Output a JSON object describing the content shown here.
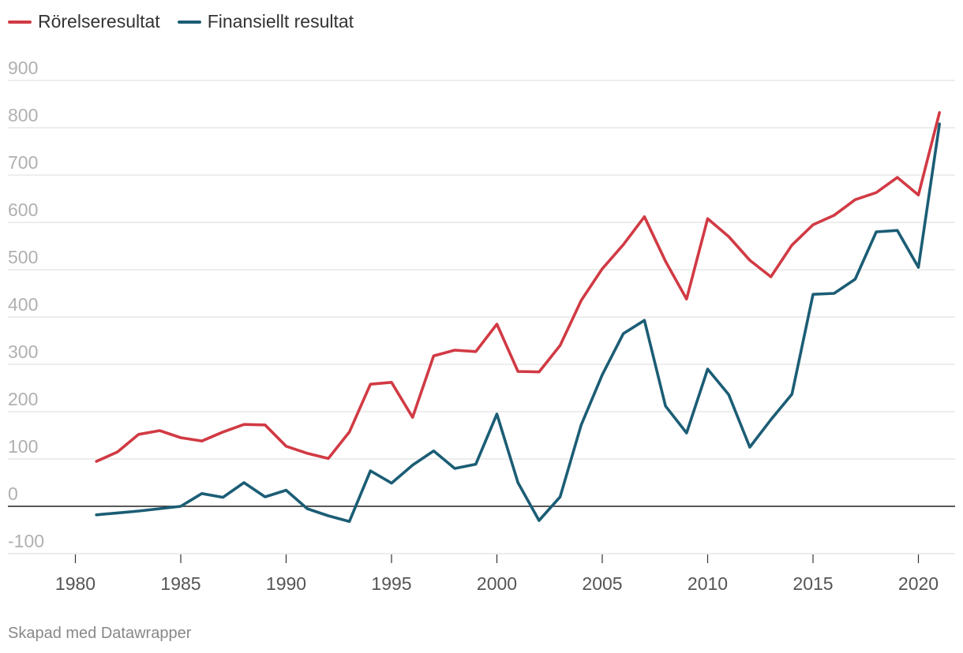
{
  "legend": {
    "items": [
      {
        "label": "Rörelseresultat",
        "color": "#d13a44"
      },
      {
        "label": "Finansiellt resultat",
        "color": "#1b5d75"
      }
    ]
  },
  "footer": {
    "credit": "Skapad med Datawrapper"
  },
  "chart_data": {
    "type": "line",
    "title": "",
    "xlabel": "",
    "ylabel": "",
    "ylim": [
      -100,
      900
    ],
    "xlim": [
      1980,
      2021
    ],
    "yticks": [
      "900",
      "800",
      "700",
      "600",
      "500",
      "400",
      "300",
      "200",
      "100",
      "0",
      "-100"
    ],
    "ytick_values": [
      900,
      800,
      700,
      600,
      500,
      400,
      300,
      200,
      100,
      0,
      -100
    ],
    "xticks": [
      "1980",
      "1985",
      "1990",
      "1995",
      "2000",
      "2005",
      "2010",
      "2015",
      "2020"
    ],
    "xtick_values": [
      1980,
      1985,
      1990,
      1995,
      2000,
      2005,
      2010,
      2015,
      2020
    ],
    "grid": true,
    "x": [
      1981,
      1982,
      1983,
      1984,
      1985,
      1986,
      1987,
      1988,
      1989,
      1990,
      1991,
      1992,
      1993,
      1994,
      1995,
      1996,
      1997,
      1998,
      1999,
      2000,
      2001,
      2002,
      2003,
      2004,
      2005,
      2006,
      2007,
      2008,
      2009,
      2010,
      2011,
      2012,
      2013,
      2014,
      2015,
      2016,
      2017,
      2018,
      2019,
      2020,
      2021
    ],
    "series": [
      {
        "name": "Rörelseresultat",
        "color": "#d13a44",
        "values": [
          95,
          115,
          152,
          160,
          145,
          138,
          157,
          173,
          172,
          127,
          112,
          101,
          157,
          258,
          262,
          188,
          318,
          330,
          327,
          385,
          285,
          284,
          340,
          435,
          502,
          553,
          612,
          518,
          438,
          608,
          570,
          520,
          485,
          552,
          595,
          615,
          648,
          663,
          695,
          658,
          832
        ]
      },
      {
        "name": "Finansiellt resultat",
        "color": "#1b5d75",
        "values": [
          -18,
          -14,
          -10,
          -5,
          0,
          27,
          19,
          50,
          20,
          34,
          -5,
          -20,
          -32,
          75,
          49,
          87,
          117,
          80,
          89,
          195,
          50,
          -30,
          20,
          172,
          278,
          365,
          393,
          212,
          155,
          290,
          236,
          125,
          183,
          237,
          448,
          450,
          480,
          580,
          583,
          505,
          808
        ]
      }
    ]
  }
}
